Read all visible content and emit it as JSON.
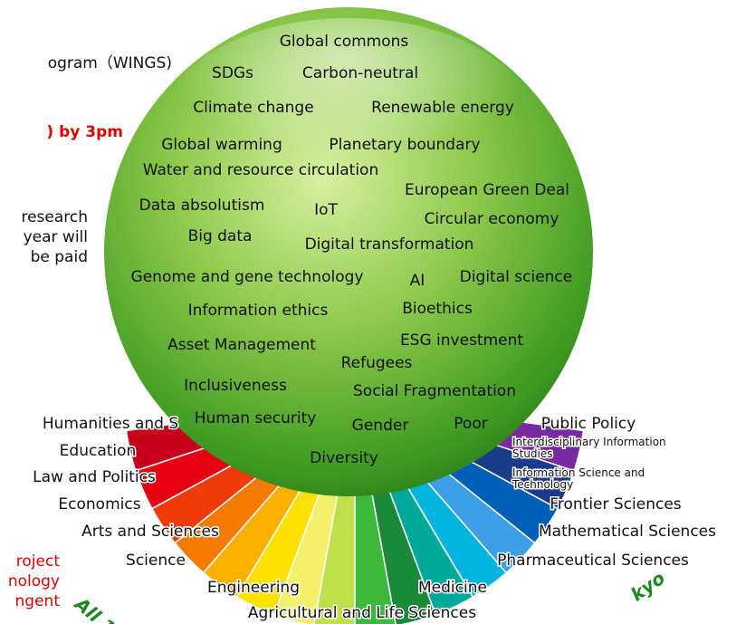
{
  "left_text": {
    "lines": [
      "ogram（WINGS)",
      ") by 3pm",
      "research",
      "year will",
      "be paid"
    ],
    "bottom_lines": [
      "roject",
      "nology",
      "ngent"
    ]
  },
  "keywords": [
    "Global commons",
    "SDGs",
    "Carbon-neutral",
    "Climate change",
    "Renewable energy",
    "Global warming",
    "Planetary boundary",
    "Water and resource circulation",
    "European Green Deal",
    "Data absolutism",
    "IoT",
    "Circular economy",
    "Big data",
    "Digital transformation",
    "Genome and gene technology",
    "AI",
    "Digital science",
    "Information ethics",
    "Bioethics",
    "Asset Management",
    "ESG investment",
    "Refugees",
    "Inclusiveness",
    "Social Fragmentation",
    "Human security",
    "Gender",
    "Poor",
    "Diversity"
  ],
  "faculties": [
    "Humanities and S",
    "Education",
    "Law and Politics",
    "Economics",
    "Arts and Sciences",
    "Science",
    "Engineering",
    "Agricultural and Life Sciences",
    "Medicine",
    "Pharmaceutical Sciences",
    "Mathematical Sciences",
    "Frontier Sciences",
    "Information Science and Technology",
    "Interdisciplinary Information Studies",
    "Public Policy"
  ],
  "arc_text": [
    "All 1",
    "kyo"
  ]
}
